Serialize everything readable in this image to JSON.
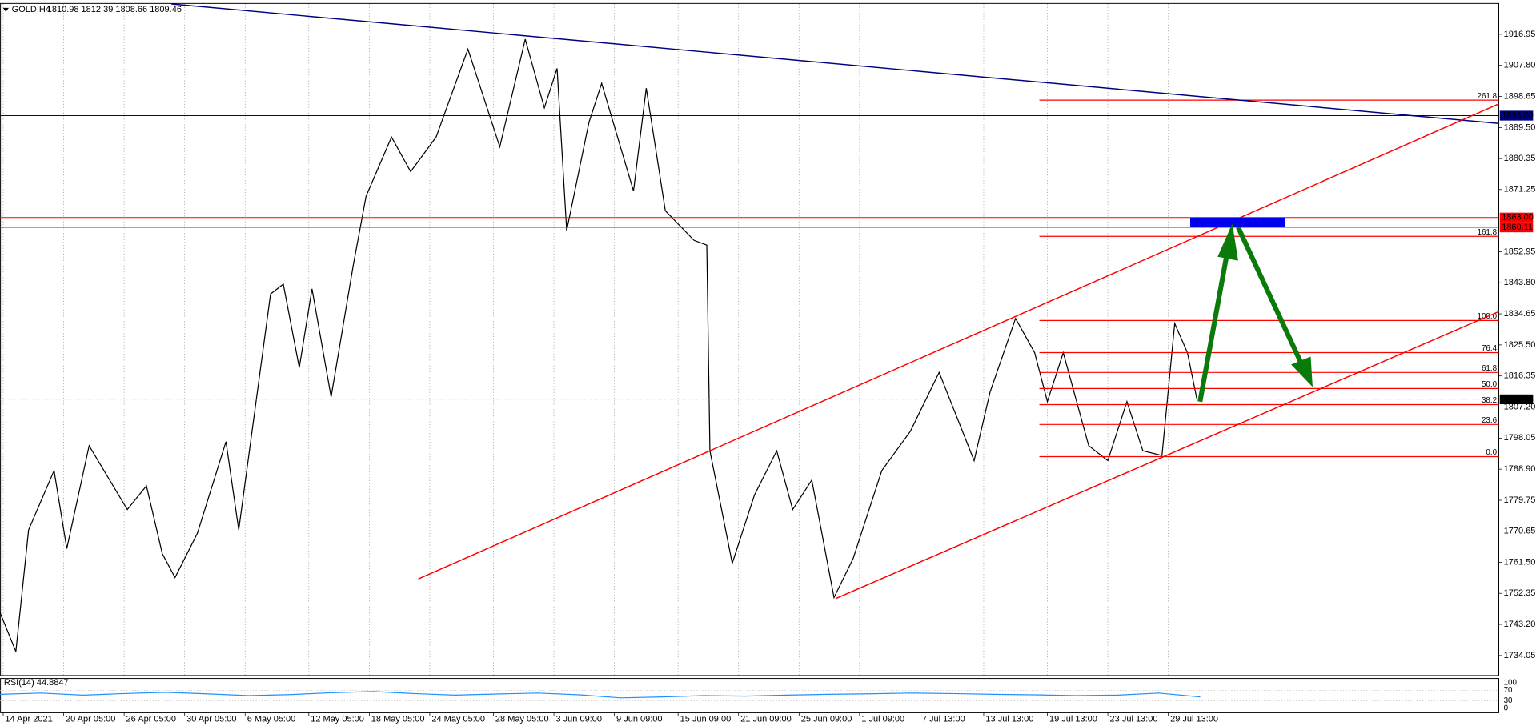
{
  "chart_data": [
    {
      "type": "line",
      "title": "GOLD,H4",
      "subtitle": "1810.98 1812.39 1808.66 1809.46",
      "color": "#000000",
      "x": [
        0,
        5,
        9,
        17,
        21,
        28,
        40,
        46,
        51,
        55,
        62,
        71,
        75,
        85,
        89,
        94,
        98,
        104,
        111,
        115,
        123,
        129,
        137,
        147,
        157,
        165,
        171,
        175,
        178,
        185,
        189,
        199,
        203,
        209,
        218,
        222,
        223,
        230,
        237,
        244,
        249,
        255,
        262,
        268,
        277,
        286,
        295,
        306,
        311,
        319,
        325,
        329,
        334,
        342,
        348,
        354,
        359,
        365,
        369,
        373,
        376
      ],
      "values": [
        1746.7,
        1735.2,
        1771,
        1788.5,
        1765.5,
        1795.8,
        1777,
        1784,
        1764,
        1757,
        1770,
        1797,
        1771,
        1840.5,
        1843.4,
        1818.8,
        1842,
        1810.2,
        1849.1,
        1869.3,
        1886.7,
        1876.5,
        1886.7,
        1912.6,
        1883.8,
        1915.5,
        1895.3,
        1906.9,
        1859.2,
        1891,
        1902.5,
        1870.8,
        1901.1,
        1865,
        1856.3,
        1854.9,
        1794.3,
        1761.2,
        1781.3,
        1794.3,
        1777,
        1785.7,
        1751.1,
        1762.6,
        1788.5,
        1800.1,
        1817.4,
        1791.4,
        1811.6,
        1833.3,
        1823.2,
        1808.8,
        1823.2,
        1795.8,
        1791.4,
        1808.8,
        1794.3,
        1792.9,
        1831.8,
        1823.2,
        1809.46
      ],
      "xlim": [
        0,
        470.8
      ],
      "ylim": [
        1728,
        1927.05
      ],
      "grid": "x",
      "xticks": [
        {
          "value": 1,
          "label": "14 Apr 2021"
        },
        {
          "value": 20,
          "label": "20 Apr 05:00"
        },
        {
          "value": 39,
          "label": "26 Apr 05:00"
        },
        {
          "value": 58,
          "label": "30 Apr 05:00"
        },
        {
          "value": 77,
          "label": "6 May 05:00"
        },
        {
          "value": 97,
          "label": "12 May 05:00"
        },
        {
          "value": 116,
          "label": "18 May 05:00"
        },
        {
          "value": 135,
          "label": "24 May 05:00"
        },
        {
          "value": 155,
          "label": "28 May 05:00"
        },
        {
          "value": 174,
          "label": "3 Jun 09:00"
        },
        {
          "value": 193,
          "label": "9 Jun 09:00"
        },
        {
          "value": 213,
          "label": "15 Jun 09:00"
        },
        {
          "value": 232,
          "label": "21 Jun 09:00"
        },
        {
          "value": 251,
          "label": "25 Jun 09:00"
        },
        {
          "value": 270,
          "label": "1 Jul 09:00"
        },
        {
          "value": 289,
          "label": "7 Jul 13:00"
        },
        {
          "value": 309,
          "label": "13 Jul 13:00"
        },
        {
          "value": 329,
          "label": "19 Jul 13:00"
        },
        {
          "value": 348,
          "label": "23 Jul 13:00"
        },
        {
          "value": 367,
          "label": "29 Jul 13:00"
        }
      ],
      "yticks": [
        1916.95,
        {
          "value": 1907.8,
          "label": "1907.80"
        },
        1898.65,
        {
          "value": 1889.5,
          "label": "1889.50"
        },
        1880.35,
        1871.25,
        1852.95,
        {
          "value": 1843.8,
          "label": "1843.80"
        },
        1834.65,
        {
          "value": 1825.5,
          "label": "1825.50"
        },
        1816.35,
        {
          "value": 1807.2,
          "label": "1807.20"
        },
        1798.05,
        {
          "value": 1788.9,
          "label": "1788.90"
        },
        1779.75,
        1770.65,
        {
          "value": 1761.5,
          "label": "1761.50"
        },
        1752.35,
        {
          "value": 1743.2,
          "label": "1743.20"
        },
        1734.05
      ],
      "price_lines": [
        {
          "value": 1893,
          "label": "1893.00",
          "color": "#000080"
        },
        {
          "value": 1863,
          "label": "1863.00",
          "color": "#ff0000"
        },
        {
          "value": 1860.11,
          "label": "1860.11",
          "color": "#ff0000"
        }
      ],
      "last_price": {
        "value": 1809.46,
        "label": "1809.46",
        "color": "#000000"
      },
      "fibonacci": {
        "low": 1792.6,
        "high": 1832.7,
        "color": "#ff0000",
        "levels": [
          261.8,
          161.8,
          {
            "value": 100,
            "label": "100.0"
          },
          76.4,
          61.8,
          {
            "value": 50,
            "label": "50.0"
          },
          38.2,
          23.6,
          {
            "value": 0,
            "label": "0.0"
          }
        ]
      }
    },
    {
      "type": "line",
      "title": "RSI(14) 44.8847",
      "color": "#1e90ff",
      "x": [
        0,
        13,
        26,
        39,
        52,
        65,
        78,
        91,
        104,
        117,
        130,
        143,
        156,
        169,
        182,
        195,
        208,
        221,
        234,
        247,
        260,
        273,
        286,
        299,
        312,
        325,
        338,
        351,
        364,
        377
      ],
      "values": [
        55,
        60,
        52,
        58,
        63,
        57,
        50,
        54,
        61,
        66,
        58,
        52,
        56,
        60,
        53,
        41,
        45,
        50,
        48,
        52,
        55,
        57,
        60,
        58,
        55,
        53,
        50,
        52,
        60,
        44.9
      ],
      "xlim": [
        0,
        470.8
      ],
      "ylim": [
        0,
        100
      ],
      "yticks": [
        100,
        70,
        30,
        0
      ]
    }
  ]
}
